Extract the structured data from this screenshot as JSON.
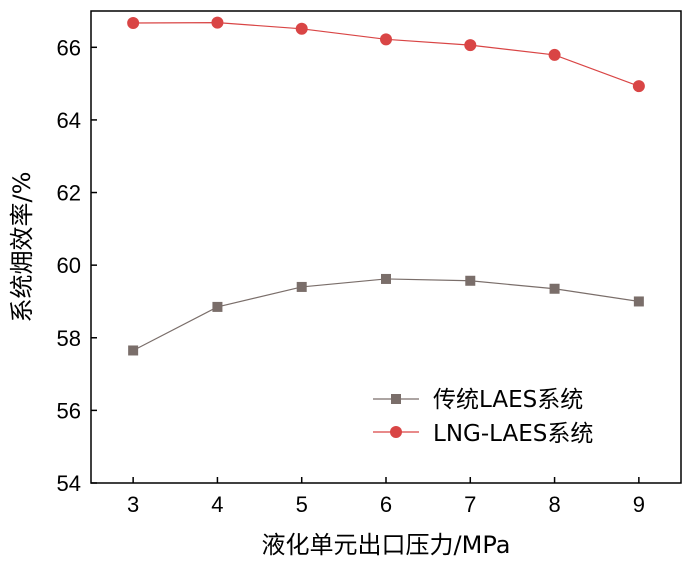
{
  "chart_data": {
    "type": "line",
    "xlabel": "液化单元出口压力/MPa",
    "ylabel": "系统㶲效率/%",
    "x": [
      3,
      4,
      5,
      6,
      7,
      8,
      9
    ],
    "xlim": [
      2.5,
      9.5
    ],
    "ylim": [
      54,
      67
    ],
    "xticks": [
      "3",
      "4",
      "5",
      "6",
      "7",
      "8",
      "9"
    ],
    "yticks": [
      "54",
      "56",
      "58",
      "60",
      "62",
      "64",
      "66"
    ],
    "grid": false,
    "legend_position": "bottom-right",
    "series": [
      {
        "name": "传统LAES系统",
        "marker": "square",
        "color": "#7a6e6a",
        "values": [
          57.65,
          58.85,
          59.4,
          59.62,
          59.57,
          59.35,
          59.0
        ]
      },
      {
        "name": "LNG-LAES系统",
        "marker": "circle",
        "color": "#d94545",
        "values": [
          66.67,
          66.68,
          66.51,
          66.22,
          66.06,
          65.79,
          64.93
        ]
      }
    ]
  }
}
